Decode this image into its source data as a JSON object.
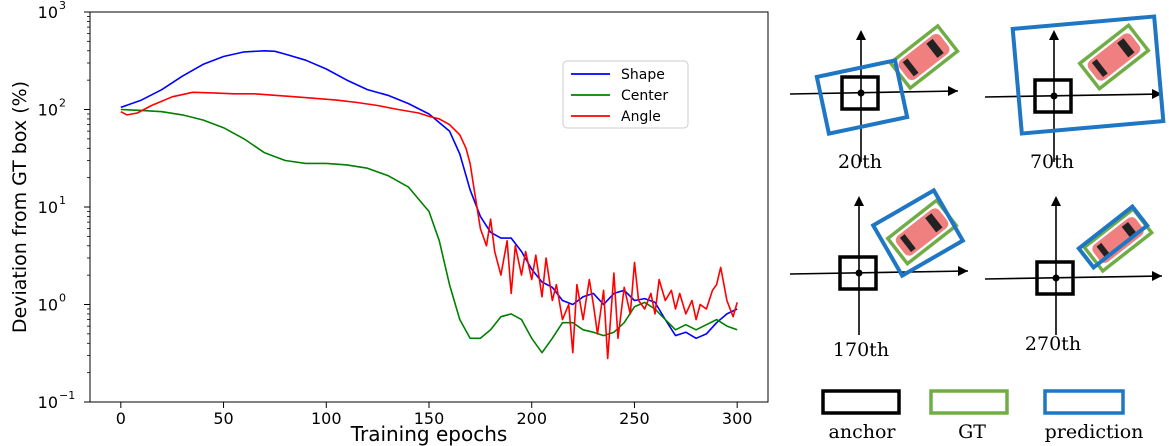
{
  "chart_data": {
    "type": "line",
    "xlabel": "Training epochs",
    "ylabel": "Deviation from GT box (%)",
    "xlim": [
      -15,
      315
    ],
    "ylim": [
      0.1,
      1000
    ],
    "yscale": "log",
    "xticks": [
      0,
      50,
      100,
      150,
      200,
      250,
      300
    ],
    "yticks": [
      {
        "value": 0.1,
        "base": "10",
        "exp": "−1"
      },
      {
        "value": 1,
        "base": "10",
        "exp": "0"
      },
      {
        "value": 10,
        "base": "10",
        "exp": "1"
      },
      {
        "value": 100,
        "base": "10",
        "exp": "2"
      },
      {
        "value": 1000,
        "base": "10",
        "exp": "3"
      }
    ],
    "legend_position": "upper-right",
    "series": [
      {
        "name": "Shape",
        "color": "#0000ff",
        "x": [
          0,
          10,
          20,
          30,
          40,
          50,
          60,
          70,
          75,
          80,
          90,
          100,
          110,
          120,
          130,
          140,
          150,
          160,
          165,
          170,
          175,
          180,
          185,
          190,
          195,
          200,
          205,
          210,
          215,
          220,
          225,
          230,
          235,
          240,
          245,
          250,
          255,
          260,
          265,
          270,
          275,
          280,
          285,
          290,
          295,
          300
        ],
        "y": [
          105,
          125,
          160,
          220,
          290,
          350,
          390,
          400,
          395,
          370,
          320,
          260,
          200,
          160,
          140,
          115,
          90,
          60,
          35,
          15,
          8,
          5.5,
          4.8,
          4.8,
          3.5,
          2.3,
          1.7,
          1.5,
          1.1,
          1.0,
          1.2,
          1.3,
          1.0,
          1.3,
          1.4,
          1.1,
          1.15,
          1.05,
          0.7,
          0.48,
          0.52,
          0.45,
          0.5,
          0.65,
          0.8,
          0.9
        ]
      },
      {
        "name": "Center",
        "color": "#008000",
        "x": [
          0,
          10,
          20,
          30,
          40,
          50,
          60,
          70,
          80,
          90,
          100,
          110,
          120,
          130,
          140,
          150,
          155,
          160,
          165,
          170,
          175,
          180,
          185,
          190,
          195,
          200,
          205,
          210,
          215,
          220,
          225,
          230,
          235,
          240,
          245,
          250,
          255,
          260,
          265,
          270,
          275,
          280,
          285,
          290,
          295,
          300
        ],
        "y": [
          100,
          98,
          95,
          88,
          78,
          65,
          50,
          36,
          30,
          28,
          28,
          27,
          25,
          21,
          16,
          9,
          4.5,
          1.6,
          0.7,
          0.45,
          0.45,
          0.55,
          0.75,
          0.8,
          0.7,
          0.45,
          0.32,
          0.45,
          0.65,
          0.65,
          0.55,
          0.52,
          0.48,
          0.52,
          0.65,
          0.95,
          1.05,
          0.9,
          0.7,
          0.55,
          0.62,
          0.55,
          0.62,
          0.7,
          0.6,
          0.55
        ]
      },
      {
        "name": "Angle",
        "color": "#ff0000",
        "x": [
          0,
          3,
          8,
          15,
          25,
          35,
          45,
          55,
          65,
          75,
          85,
          95,
          105,
          115,
          125,
          135,
          145,
          150,
          155,
          160,
          165,
          168,
          170,
          172,
          175,
          178,
          180,
          182,
          185,
          188,
          190,
          192,
          195,
          197,
          200,
          202,
          205,
          207,
          210,
          212,
          215,
          218,
          220,
          222,
          225,
          228,
          230,
          232,
          235,
          237,
          240,
          242,
          245,
          248,
          250,
          252,
          255,
          258,
          260,
          262,
          265,
          268,
          270,
          272,
          275,
          278,
          280,
          282,
          285,
          288,
          290,
          292,
          295,
          298,
          300
        ],
        "y": [
          95,
          88,
          92,
          110,
          135,
          150,
          148,
          145,
          145,
          140,
          135,
          130,
          125,
          118,
          110,
          100,
          92,
          85,
          80,
          70,
          55,
          40,
          28,
          15,
          6,
          4,
          7.5,
          3.5,
          2,
          4.5,
          1.3,
          4,
          2,
          3.5,
          1.8,
          3.2,
          1.2,
          3,
          1.1,
          1.6,
          0.7,
          1,
          0.32,
          1.6,
          0.7,
          1.8,
          1,
          0.5,
          1.4,
          0.28,
          2.1,
          0.45,
          1.5,
          0.8,
          2.7,
          1.1,
          0.9,
          1.3,
          0.8,
          1.8,
          1.1,
          1.4,
          0.9,
          1.3,
          0.8,
          1.1,
          0.7,
          1.0,
          0.9,
          1.4,
          1.6,
          2.4,
          1.1,
          0.75,
          1.05
        ]
      }
    ]
  },
  "diagram": {
    "panels": [
      {
        "label": "20th"
      },
      {
        "label": "70th"
      },
      {
        "label": "170th"
      },
      {
        "label": "270th"
      }
    ],
    "legend": [
      {
        "label": "anchor",
        "color": "#000000"
      },
      {
        "label": "GT",
        "color": "#70ad47"
      },
      {
        "label": "prediction",
        "color": "#1f77c4"
      }
    ],
    "car_body_color": "#f08080",
    "car_window_color": "#222222",
    "gt_color": "#70ad47",
    "prediction_color": "#1f77c4"
  }
}
